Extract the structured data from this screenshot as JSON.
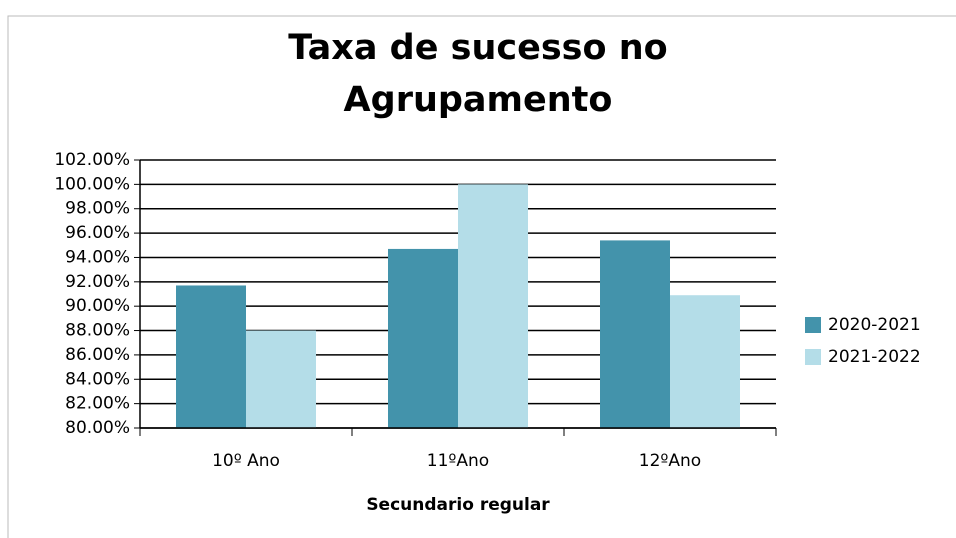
{
  "chart_data": {
    "type": "bar",
    "title": "Taxa de sucesso no Agrupamento",
    "x_label": "Secundario regular",
    "categories": [
      "10º Ano",
      "11ºAno",
      "12ºAno"
    ],
    "series": [
      {
        "name": "2020-2021",
        "color": "#4393ab",
        "values": [
          91.7,
          94.7,
          95.4
        ]
      },
      {
        "name": "2021-2022",
        "color": "#b4dde8",
        "values": [
          88.0,
          100.0,
          90.9
        ]
      }
    ],
    "ylim": [
      80,
      102
    ],
    "yticks": [
      {
        "value": 80,
        "label": "80.00%"
      },
      {
        "value": 82,
        "label": "82.00%"
      },
      {
        "value": 84,
        "label": "84.00%"
      },
      {
        "value": 86,
        "label": "86.00%"
      },
      {
        "value": 88,
        "label": "88.00%"
      },
      {
        "value": 90,
        "label": "90.00%"
      },
      {
        "value": 92,
        "label": "92.00%"
      },
      {
        "value": 94,
        "label": "94.00%"
      },
      {
        "value": 96,
        "label": "96.00%"
      },
      {
        "value": 98,
        "label": "98.00%"
      },
      {
        "value": 100,
        "label": "100.00%"
      },
      {
        "value": 102,
        "label": "102.00%"
      }
    ],
    "grid": true,
    "legend": "right"
  }
}
